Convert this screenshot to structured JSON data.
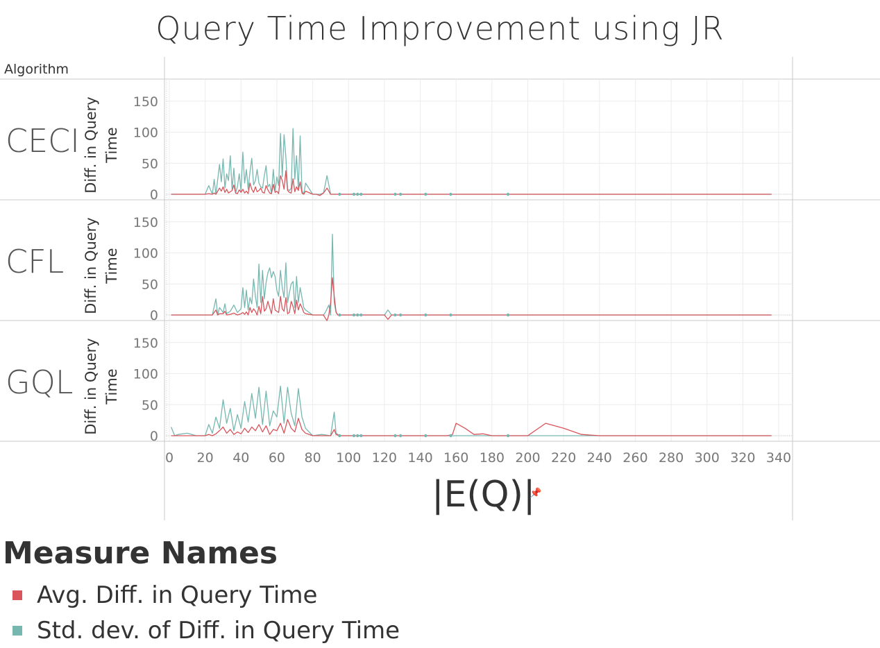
{
  "colors": {
    "avg": "#d9545b",
    "std": "#76b7b0",
    "grid": "#ececec",
    "border": "#c8c8c8",
    "tick": "#777777"
  },
  "legend": {
    "title": "Measure Names",
    "items": [
      {
        "label": "Avg. Diff. in Query Time",
        "color": "#d9545b"
      },
      {
        "label": "Std. dev. of Diff. in Query Time",
        "color": "#76b7b0"
      }
    ]
  },
  "chart_data": {
    "type": "line",
    "title": "Query Time Improvement using JR",
    "row_header": "Algorithm",
    "xlabel": "|E(Q)|",
    "ylabel": "Diff. in Query Time",
    "xlim": [
      0,
      340
    ],
    "ylim": [
      -5,
      185
    ],
    "x_ticks": [
      0,
      20,
      40,
      60,
      80,
      100,
      120,
      140,
      160,
      180,
      200,
      220,
      240,
      260,
      280,
      300,
      320,
      340
    ],
    "y_ticks": [
      0,
      50,
      100,
      150
    ],
    "facets": [
      {
        "name": "CECI",
        "series": [
          {
            "name": "Avg. Diff. in Query Time",
            "x": [
              1,
              10,
              20,
              22,
              24,
              25,
              26,
              28,
              29,
              30,
              31,
              32,
              33,
              34,
              35,
              36,
              37,
              38,
              39,
              40,
              41,
              42,
              43,
              44,
              45,
              46,
              47,
              48,
              49,
              50,
              51,
              52,
              53,
              54,
              55,
              56,
              57,
              58,
              59,
              60,
              61,
              62,
              63,
              64,
              65,
              66,
              67,
              68,
              69,
              70,
              71,
              72,
              73,
              74,
              75,
              76,
              80,
              82,
              84,
              86,
              87,
              88,
              90,
              100,
              110,
              120,
              140,
              160,
              180,
              200,
              220,
              240,
              260,
              280,
              300,
              320,
              336
            ],
            "y": [
              0,
              0,
              0,
              1,
              0,
              2,
              0,
              10,
              5,
              12,
              3,
              8,
              2,
              4,
              6,
              15,
              2,
              1,
              7,
              3,
              8,
              2,
              5,
              1,
              18,
              8,
              3,
              12,
              4,
              6,
              10,
              3,
              2,
              14,
              7,
              2,
              1,
              16,
              3,
              5,
              1,
              30,
              22,
              8,
              38,
              6,
              3,
              2,
              25,
              4,
              12,
              6,
              20,
              2,
              0,
              5,
              0,
              0,
              -2,
              2,
              6,
              10,
              0,
              0,
              0,
              0,
              0,
              0,
              0,
              0,
              0,
              0,
              0,
              0,
              0,
              0,
              0
            ]
          },
          {
            "name": "Std. dev. of Diff. in Query Time",
            "x": [
              1,
              10,
              20,
              22,
              24,
              25,
              26,
              28,
              29,
              30,
              31,
              32,
              33,
              34,
              35,
              36,
              37,
              38,
              39,
              40,
              41,
              42,
              43,
              44,
              45,
              46,
              47,
              48,
              49,
              50,
              51,
              52,
              53,
              54,
              55,
              56,
              57,
              58,
              59,
              60,
              61,
              62,
              63,
              64,
              65,
              66,
              67,
              68,
              69,
              70,
              71,
              72,
              73,
              74,
              75,
              76,
              80,
              82,
              84,
              86,
              87,
              88,
              90,
              100,
              110,
              120,
              140,
              160,
              180,
              200,
              220,
              240,
              260,
              280,
              300,
              320,
              336
            ],
            "y": [
              0,
              0,
              0,
              14,
              0,
              24,
              0,
              48,
              20,
              57,
              10,
              33,
              22,
              62,
              8,
              42,
              2,
              12,
              33,
              5,
              68,
              18,
              40,
              8,
              36,
              58,
              15,
              22,
              40,
              18,
              12,
              10,
              30,
              46,
              12,
              16,
              2,
              40,
              5,
              28,
              14,
              98,
              28,
              96,
              60,
              8,
              6,
              10,
              106,
              24,
              62,
              8,
              94,
              6,
              0,
              18,
              0,
              0,
              0,
              2,
              16,
              30,
              0,
              0,
              0,
              0,
              0,
              0,
              0,
              0,
              0,
              0,
              0,
              0,
              0,
              0,
              0
            ]
          }
        ],
        "points": [
          95,
          103,
          105,
          107,
          126,
          129,
          143,
          157,
          189
        ]
      },
      {
        "name": "CFL",
        "series": [
          {
            "name": "Avg. Diff. in Query Time",
            "x": [
              1,
              10,
              20,
              24,
              26,
              27,
              28,
              30,
              31,
              32,
              34,
              36,
              38,
              40,
              41,
              42,
              43,
              44,
              45,
              46,
              47,
              48,
              49,
              50,
              51,
              52,
              53,
              54,
              55,
              56,
              57,
              58,
              59,
              60,
              61,
              62,
              63,
              64,
              65,
              66,
              67,
              68,
              69,
              70,
              71,
              72,
              73,
              74,
              75,
              76,
              80,
              85,
              86,
              87,
              88,
              89,
              90,
              91,
              92,
              93,
              94,
              95,
              100,
              110,
              119,
              120,
              122,
              124,
              130,
              160,
              190,
              220,
              250,
              280,
              310,
              336
            ],
            "y": [
              0,
              0,
              0,
              0,
              8,
              0,
              2,
              2,
              6,
              0,
              1,
              3,
              0,
              2,
              4,
              1,
              5,
              0,
              12,
              4,
              10,
              6,
              0,
              14,
              2,
              30,
              6,
              10,
              22,
              12,
              2,
              26,
              8,
              6,
              4,
              30,
              10,
              6,
              28,
              2,
              4,
              22,
              14,
              2,
              24,
              8,
              18,
              12,
              4,
              2,
              0,
              0,
              0,
              -5,
              -9,
              0,
              20,
              60,
              30,
              5,
              0,
              0,
              0,
              0,
              0,
              0,
              -7,
              0,
              0,
              0,
              0,
              0,
              0,
              0,
              0,
              0
            ]
          },
          {
            "name": "Std. dev. of Diff. in Query Time",
            "x": [
              1,
              10,
              20,
              24,
              26,
              27,
              28,
              30,
              31,
              32,
              34,
              36,
              38,
              40,
              41,
              42,
              43,
              44,
              45,
              46,
              47,
              48,
              49,
              50,
              51,
              52,
              53,
              54,
              55,
              56,
              57,
              58,
              59,
              60,
              61,
              62,
              63,
              64,
              65,
              66,
              67,
              68,
              69,
              70,
              71,
              72,
              73,
              74,
              75,
              76,
              80,
              85,
              86,
              87,
              88,
              89,
              90,
              91,
              92,
              93,
              94,
              95,
              100,
              110,
              119,
              120,
              122,
              124,
              130,
              160,
              190,
              220,
              250,
              280,
              310,
              336
            ],
            "y": [
              0,
              0,
              0,
              0,
              26,
              0,
              12,
              4,
              18,
              2,
              6,
              16,
              4,
              10,
              44,
              12,
              40,
              8,
              28,
              18,
              58,
              30,
              12,
              82,
              20,
              72,
              26,
              52,
              68,
              76,
              60,
              70,
              62,
              40,
              30,
              72,
              44,
              28,
              84,
              20,
              36,
              50,
              54,
              12,
              62,
              20,
              44,
              28,
              12,
              8,
              0,
              0,
              0,
              4,
              10,
              16,
              0,
              130,
              20,
              4,
              0,
              0,
              0,
              0,
              0,
              0,
              8,
              0,
              0,
              0,
              0,
              0,
              0,
              0,
              0,
              0
            ]
          }
        ],
        "points": [
          95,
          103,
          105,
          107,
          126,
          129,
          143,
          157,
          189
        ]
      },
      {
        "name": "GQL",
        "series": [
          {
            "name": "Avg. Diff. in Query Time",
            "x": [
              1,
              3,
              5,
              10,
              15,
              20,
              22,
              24,
              26,
              28,
              30,
              32,
              34,
              36,
              38,
              40,
              42,
              44,
              46,
              48,
              50,
              52,
              54,
              56,
              58,
              60,
              62,
              64,
              66,
              68,
              70,
              72,
              74,
              76,
              80,
              85,
              90,
              92,
              93,
              95,
              100,
              110,
              120,
              130,
              140,
              150,
              155,
              158,
              160,
              165,
              170,
              175,
              180,
              190,
              200,
              210,
              220,
              230,
              240,
              250,
              260,
              280,
              300,
              320,
              336
            ],
            "y": [
              0,
              0,
              0,
              0,
              0,
              0,
              2,
              0,
              3,
              8,
              14,
              4,
              10,
              2,
              6,
              3,
              12,
              5,
              14,
              8,
              18,
              6,
              16,
              2,
              10,
              8,
              20,
              4,
              26,
              12,
              6,
              28,
              10,
              4,
              0,
              0,
              0,
              10,
              2,
              0,
              0,
              0,
              0,
              0,
              0,
              0,
              0,
              2,
              20,
              12,
              2,
              3,
              0,
              0,
              0,
              20,
              12,
              2,
              0,
              0,
              0,
              0,
              0,
              0,
              0
            ]
          },
          {
            "name": "Std. dev. of Diff. in Query Time",
            "x": [
              1,
              3,
              5,
              10,
              15,
              20,
              22,
              24,
              26,
              28,
              30,
              32,
              34,
              36,
              38,
              40,
              42,
              44,
              46,
              48,
              50,
              52,
              54,
              56,
              58,
              60,
              62,
              64,
              66,
              68,
              70,
              72,
              74,
              76,
              80,
              85,
              90,
              92,
              93,
              95,
              100,
              110,
              120,
              130,
              140,
              150,
              155,
              158,
              160,
              165,
              170,
              175,
              180,
              190,
              200,
              210,
              220,
              230,
              240,
              250,
              260,
              280,
              300,
              320,
              336
            ],
            "y": [
              14,
              0,
              2,
              4,
              0,
              0,
              18,
              4,
              30,
              12,
              58,
              20,
              44,
              8,
              34,
              12,
              55,
              22,
              68,
              28,
              78,
              18,
              72,
              16,
              40,
              30,
              80,
              20,
              78,
              36,
              16,
              76,
              30,
              12,
              0,
              2,
              0,
              38,
              4,
              0,
              0,
              0,
              0,
              0,
              0,
              0,
              0,
              0,
              0,
              0,
              0,
              0,
              0,
              0,
              0,
              0,
              0,
              0,
              0,
              0,
              0,
              0,
              0,
              0,
              0
            ]
          }
        ],
        "points": [
          95,
          103,
          105,
          107,
          126,
          129,
          143,
          157,
          189
        ]
      }
    ]
  }
}
